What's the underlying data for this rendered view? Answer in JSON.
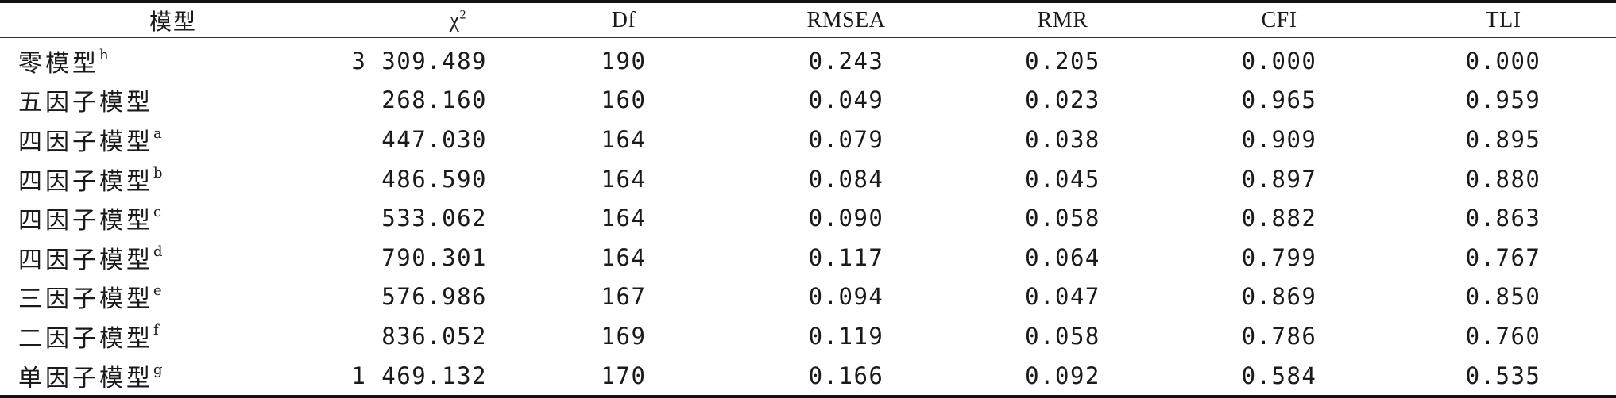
{
  "headers": {
    "model": "模型",
    "chi": "χ",
    "chi_sup": "2",
    "df": "Df",
    "rmsea": "RMSEA",
    "rmr": "RMR",
    "cfi": "CFI",
    "tli": "TLI"
  },
  "rows": [
    {
      "model": "零模型",
      "sup": "h",
      "chi": "3 309.489",
      "df": "190",
      "rmsea": "0.243",
      "rmr": "0.205",
      "cfi": "0.000",
      "tli": "0.000"
    },
    {
      "model": "五因子模型",
      "sup": "",
      "chi": "268.160",
      "df": "160",
      "rmsea": "0.049",
      "rmr": "0.023",
      "cfi": "0.965",
      "tli": "0.959"
    },
    {
      "model": "四因子模型",
      "sup": "a",
      "chi": "447.030",
      "df": "164",
      "rmsea": "0.079",
      "rmr": "0.038",
      "cfi": "0.909",
      "tli": "0.895"
    },
    {
      "model": "四因子模型",
      "sup": "b",
      "chi": "486.590",
      "df": "164",
      "rmsea": "0.084",
      "rmr": "0.045",
      "cfi": "0.897",
      "tli": "0.880"
    },
    {
      "model": "四因子模型",
      "sup": "c",
      "chi": "533.062",
      "df": "164",
      "rmsea": "0.090",
      "rmr": "0.058",
      "cfi": "0.882",
      "tli": "0.863"
    },
    {
      "model": "四因子模型",
      "sup": "d",
      "chi": "790.301",
      "df": "164",
      "rmsea": "0.117",
      "rmr": "0.064",
      "cfi": "0.799",
      "tli": "0.767"
    },
    {
      "model": "三因子模型",
      "sup": "e",
      "chi": "576.986",
      "df": "167",
      "rmsea": "0.094",
      "rmr": "0.047",
      "cfi": "0.869",
      "tli": "0.850"
    },
    {
      "model": "二因子模型",
      "sup": "f",
      "chi": "836.052",
      "df": "169",
      "rmsea": "0.119",
      "rmr": "0.058",
      "cfi": "0.786",
      "tli": "0.760"
    },
    {
      "model": "单因子模型",
      "sup": "g",
      "chi": "1 469.132",
      "df": "170",
      "rmsea": "0.166",
      "rmr": "0.092",
      "cfi": "0.584",
      "tli": "0.535"
    }
  ]
}
